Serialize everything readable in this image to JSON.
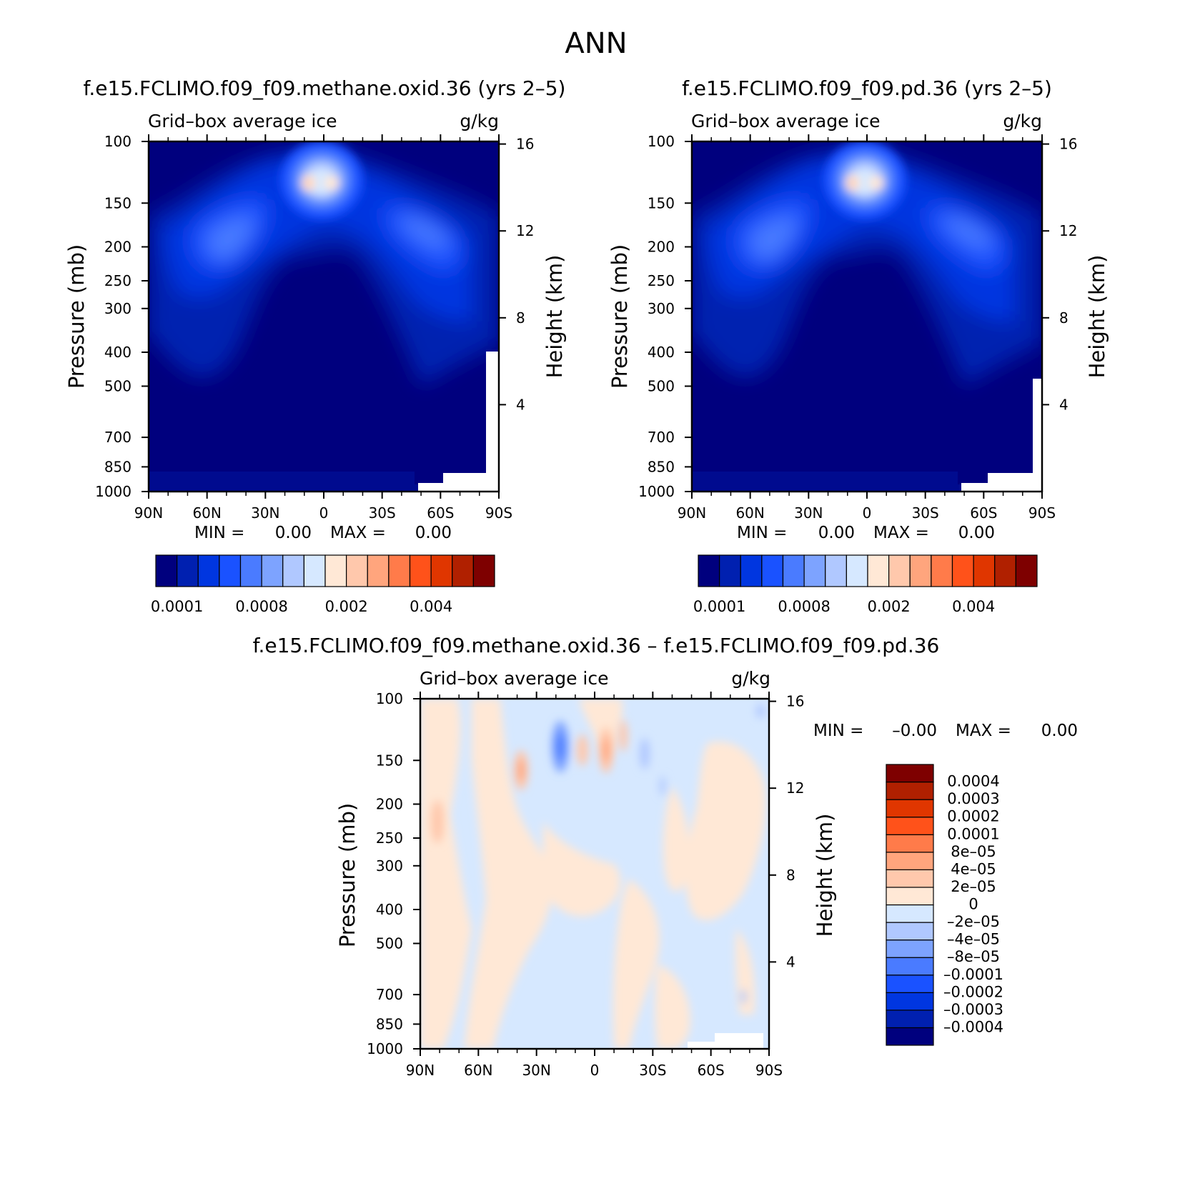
{
  "page_title": "ANN",
  "colors": {
    "levels15": [
      "#00007e",
      "#0020b0",
      "#0036e0",
      "#1a52ff",
      "#4a7bff",
      "#7da3ff",
      "#b0c8ff",
      "#d6e8ff",
      "#ffe8d6",
      "#ffc8ac",
      "#ffa57d",
      "#ff7b4a",
      "#ff521a",
      "#e03600",
      "#b02000",
      "#7e0000"
    ],
    "diff": [
      "#00007e",
      "#0020b0",
      "#0036e0",
      "#1a52ff",
      "#4a7bff",
      "#7da3ff",
      "#b0c8ff",
      "#d6e8ff",
      "#ffe8d6",
      "#ffc8ac",
      "#ffa57d",
      "#ff7b4a",
      "#ff521a",
      "#e03600",
      "#b02000",
      "#7e0000"
    ]
  },
  "chart_data": [
    {
      "type": "heatmap",
      "title": "f.e15.FCLIMO.f09_f09.methane.oxid.36 (yrs 2–5)",
      "left_label": "Grid–box average ice",
      "right_label": "g/kg",
      "ylabel": "Pressure (mb)",
      "ylabel_right": "Height (km)",
      "x_ticks": [
        "90N",
        "60N",
        "30N",
        "0",
        "30S",
        "60S",
        "90S"
      ],
      "y_ticks": [
        "100",
        "150",
        "200",
        "250",
        "300",
        "400",
        "500",
        "700",
        "850",
        "1000"
      ],
      "y_values": [
        100,
        150,
        200,
        250,
        300,
        400,
        500,
        700,
        850,
        1000
      ],
      "ylim": [
        100,
        1000
      ],
      "height_ticks": [
        "16",
        "12",
        "8",
        "4"
      ],
      "height_values": [
        16,
        12,
        8,
        4
      ],
      "min_label": "MIN =",
      "min_value": "0.00",
      "max_label": "MAX =",
      "max_value": "0.00",
      "colorbar_labels": [
        "0.0001",
        "0.0008",
        "0.002",
        "0.004"
      ]
    },
    {
      "type": "heatmap",
      "title": "f.e15.FCLIMO.f09_f09.pd.36 (yrs 2–5)",
      "left_label": "Grid–box average ice",
      "right_label": "g/kg",
      "ylabel": "Pressure (mb)",
      "ylabel_right": "Height (km)",
      "x_ticks": [
        "90N",
        "60N",
        "30N",
        "0",
        "30S",
        "60S",
        "90S"
      ],
      "y_ticks": [
        "100",
        "150",
        "200",
        "250",
        "300",
        "400",
        "500",
        "700",
        "850",
        "1000"
      ],
      "y_values": [
        100,
        150,
        200,
        250,
        300,
        400,
        500,
        700,
        850,
        1000
      ],
      "ylim": [
        100,
        1000
      ],
      "height_ticks": [
        "16",
        "12",
        "8",
        "4"
      ],
      "height_values": [
        16,
        12,
        8,
        4
      ],
      "min_label": "MIN =",
      "min_value": "0.00",
      "max_label": "MAX =",
      "max_value": "0.00",
      "colorbar_labels": [
        "0.0001",
        "0.0008",
        "0.002",
        "0.004"
      ]
    },
    {
      "type": "heatmap",
      "title": "f.e15.FCLIMO.f09_f09.methane.oxid.36 – f.e15.FCLIMO.f09_f09.pd.36",
      "left_label": "Grid–box average ice",
      "right_label": "g/kg",
      "ylabel": "Pressure (mb)",
      "ylabel_right": "Height (km)",
      "x_ticks": [
        "90N",
        "60N",
        "30N",
        "0",
        "30S",
        "60S",
        "90S"
      ],
      "y_ticks": [
        "100",
        "150",
        "200",
        "250",
        "300",
        "400",
        "500",
        "700",
        "850",
        "1000"
      ],
      "y_values": [
        100,
        150,
        200,
        250,
        300,
        400,
        500,
        700,
        850,
        1000
      ],
      "ylim": [
        100,
        1000
      ],
      "height_ticks": [
        "16",
        "12",
        "8",
        "4"
      ],
      "height_values": [
        16,
        12,
        8,
        4
      ],
      "min_label": "MIN =",
      "min_value": "–0.00",
      "max_label": "MAX =",
      "max_value": "0.00",
      "colorbar_labels": [
        "0.0004",
        "0.0003",
        "0.0002",
        "0.0001",
        "8e–05",
        "4e–05",
        "2e–05",
        "0",
        "–2e–05",
        "–4e–05",
        "–8e–05",
        "–0.0001",
        "–0.0002",
        "–0.0003",
        "–0.0004"
      ]
    }
  ]
}
